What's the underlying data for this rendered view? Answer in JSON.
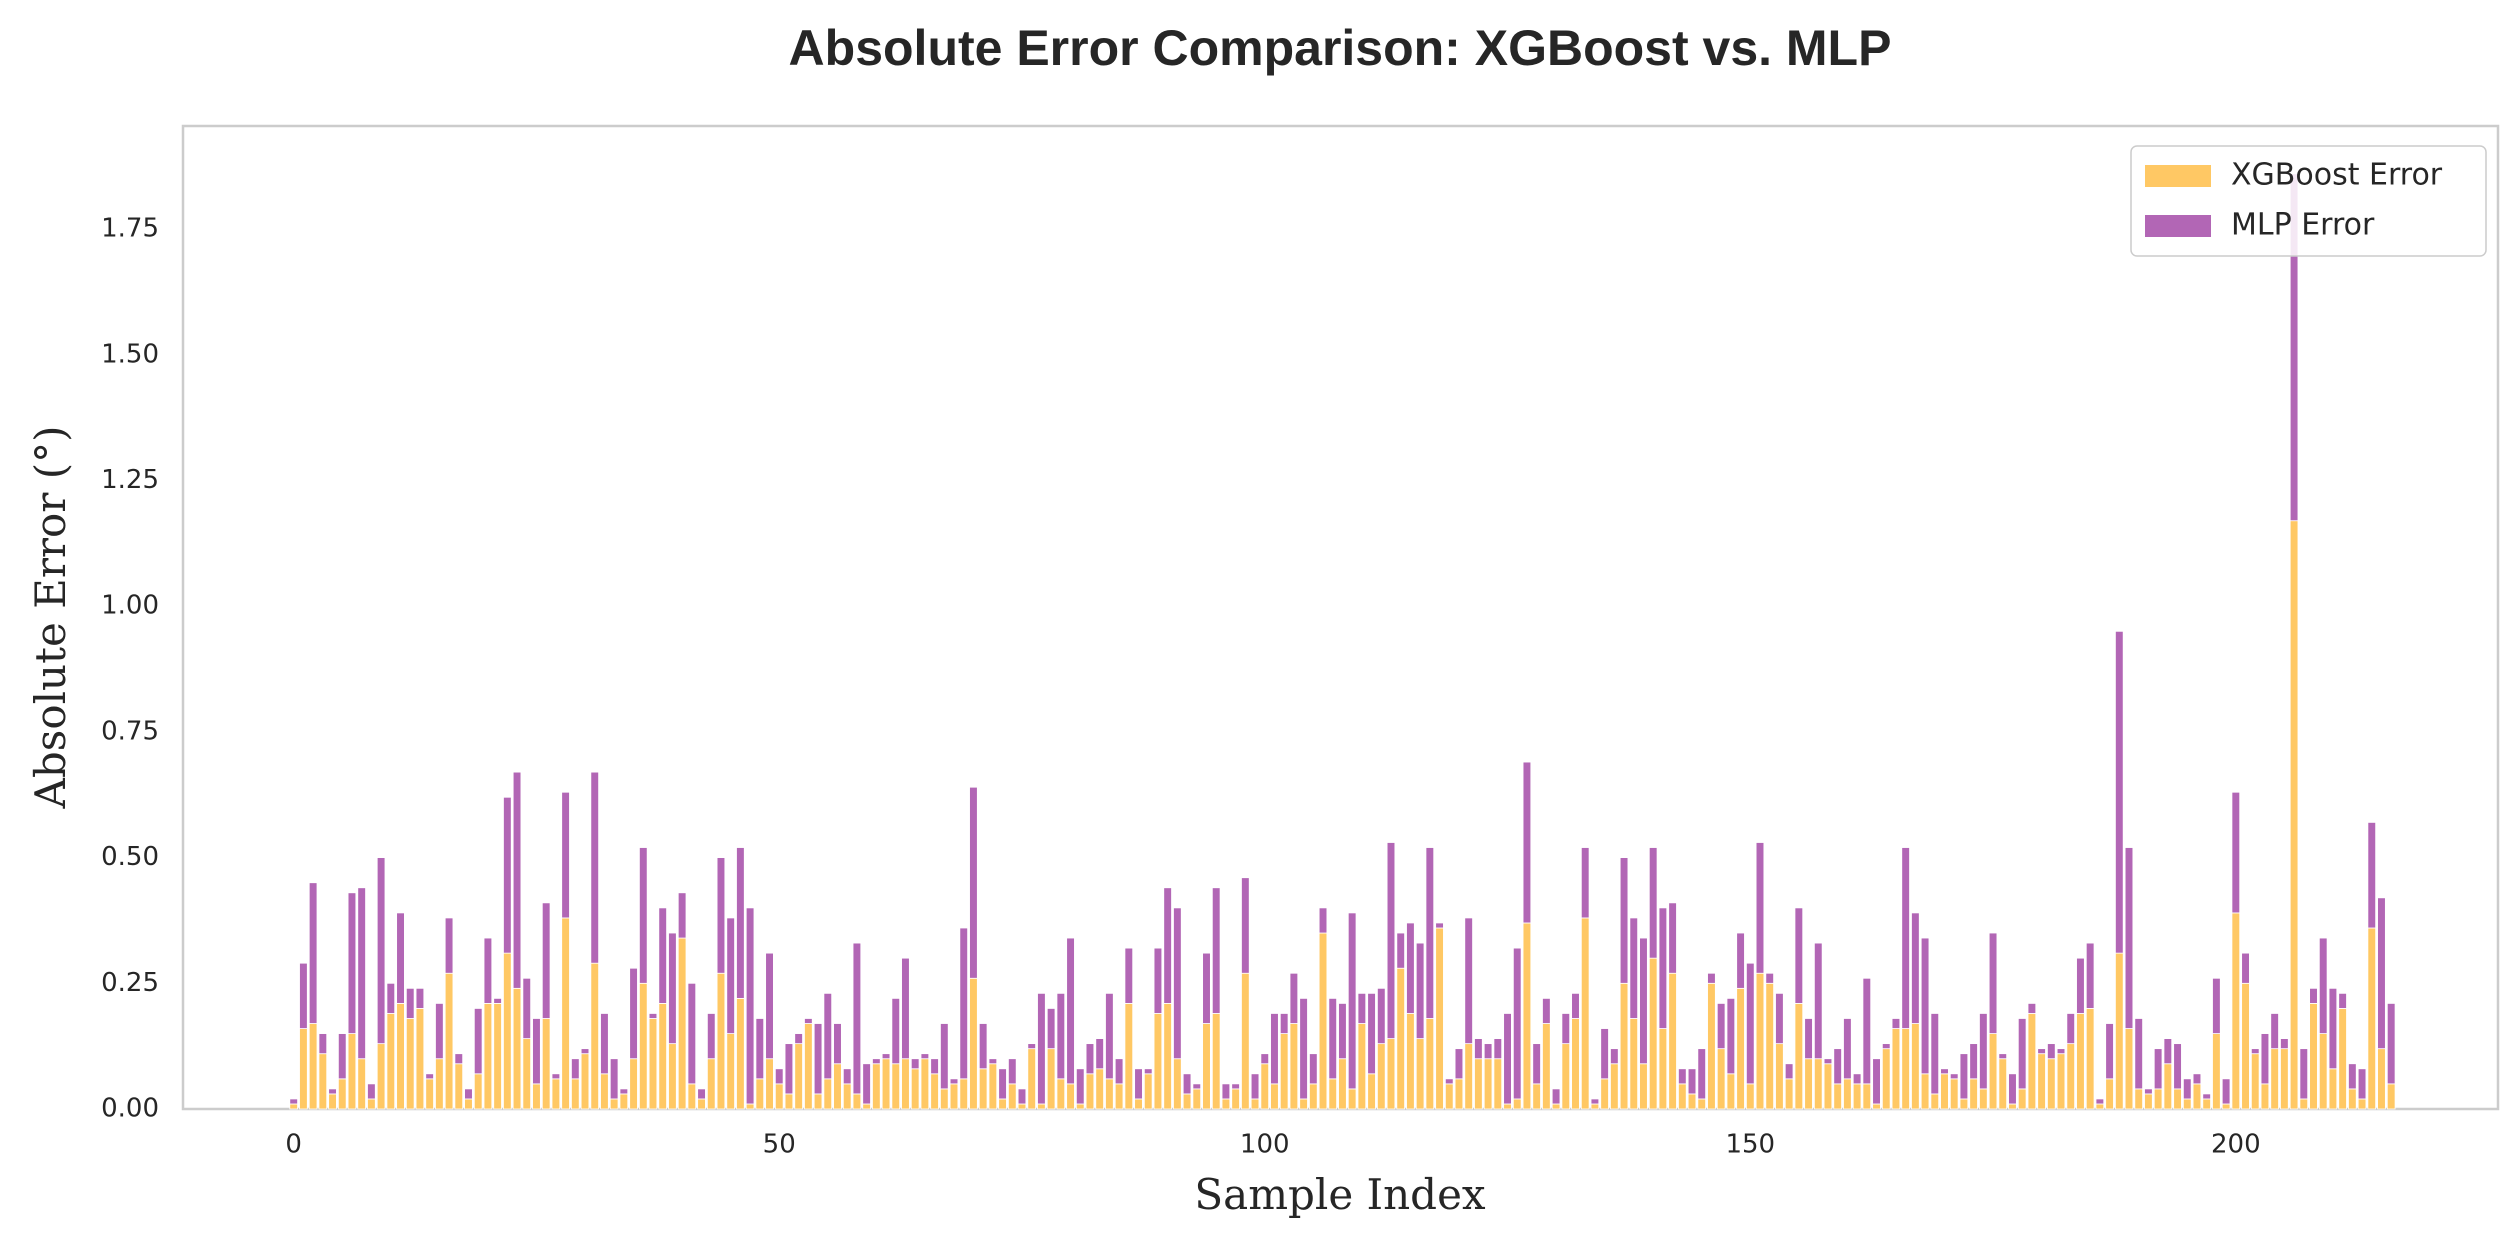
{
  "chart_data": {
    "type": "stacked_bar",
    "title": "Absolute Error Comparison: XGBoost vs. MLP",
    "x_label": "Sample Index",
    "y_label": "Absolute Error (°)",
    "x": [
      0,
      1,
      2,
      3,
      4,
      5,
      6,
      7,
      8,
      9,
      10,
      11,
      12,
      13,
      14,
      15,
      16,
      17,
      18,
      19,
      20,
      21,
      22,
      23,
      24,
      25,
      26,
      27,
      28,
      29,
      30,
      31,
      32,
      33,
      34,
      35,
      36,
      37,
      38,
      39,
      40,
      41,
      42,
      43,
      44,
      45,
      46,
      47,
      48,
      49,
      50,
      51,
      52,
      53,
      54,
      55,
      56,
      57,
      58,
      59,
      60,
      61,
      62,
      63,
      64,
      65,
      66,
      67,
      68,
      69,
      70,
      71,
      72,
      73,
      74,
      75,
      76,
      77,
      78,
      79,
      80,
      81,
      82,
      83,
      84,
      85,
      86,
      87,
      88,
      89,
      90,
      91,
      92,
      93,
      94,
      95,
      96,
      97,
      98,
      99,
      100,
      101,
      102,
      103,
      104,
      105,
      106,
      107,
      108,
      109,
      110,
      111,
      112,
      113,
      114,
      115,
      116,
      117,
      118,
      119,
      120,
      121,
      122,
      123,
      124,
      125,
      126,
      127,
      128,
      129,
      130,
      131,
      132,
      133,
      134,
      135,
      136,
      137,
      138,
      139,
      140,
      141,
      142,
      143,
      144,
      145,
      146,
      147,
      148,
      149,
      150,
      151,
      152,
      153,
      154,
      155,
      156,
      157,
      158,
      159,
      160,
      161,
      162,
      163,
      164,
      165,
      166,
      167,
      168,
      169,
      170,
      171,
      172,
      173,
      174,
      175,
      176,
      177,
      178,
      179,
      180,
      181,
      182,
      183,
      184,
      185,
      186,
      187,
      188,
      189,
      190,
      191,
      192,
      193,
      194,
      195,
      196,
      197,
      198,
      199,
      200,
      201,
      202,
      203,
      204,
      205,
      206,
      207,
      208,
      209,
      210,
      211,
      212,
      213,
      214,
      215,
      216
    ],
    "series": [
      {
        "name": "XGBoost Error",
        "color": "#ffc864",
        "values": [
          0.01,
          0.16,
          0.17,
          0.11,
          0.03,
          0.06,
          0.15,
          0.1,
          0.02,
          0.13,
          0.19,
          0.21,
          0.18,
          0.2,
          0.06,
          0.1,
          0.27,
          0.09,
          0.02,
          0.07,
          0.21,
          0.21,
          0.31,
          0.24,
          0.14,
          0.05,
          0.18,
          0.06,
          0.38,
          0.06,
          0.11,
          0.29,
          0.07,
          0.02,
          0.03,
          0.1,
          0.25,
          0.18,
          0.21,
          0.13,
          0.34,
          0.05,
          0.02,
          0.1,
          0.27,
          0.15,
          0.22,
          0.01,
          0.06,
          0.1,
          0.05,
          0.03,
          0.13,
          0.17,
          0.03,
          0.06,
          0.09,
          0.05,
          0.03,
          0.01,
          0.09,
          0.1,
          0.09,
          0.1,
          0.08,
          0.1,
          0.07,
          0.04,
          0.05,
          0.06,
          0.26,
          0.08,
          0.09,
          0.02,
          0.05,
          0.01,
          0.12,
          0.01,
          0.12,
          0.06,
          0.05,
          0.01,
          0.07,
          0.08,
          0.06,
          0.05,
          0.21,
          0.02,
          0.07,
          0.19,
          0.21,
          0.1,
          0.03,
          0.04,
          0.17,
          0.19,
          0.02,
          0.04,
          0.27,
          0.02,
          0.09,
          0.05,
          0.15,
          0.17,
          0.02,
          0.05,
          0.35,
          0.06,
          0.1,
          0.04,
          0.17,
          0.07,
          0.13,
          0.14,
          0.28,
          0.19,
          0.14,
          0.18,
          0.36,
          0.05,
          0.06,
          0.13,
          0.1,
          0.1,
          0.1,
          0.01,
          0.02,
          0.37,
          0.05,
          0.17,
          0.01,
          0.13,
          0.18,
          0.38,
          0.01,
          0.06,
          0.09,
          0.25,
          0.18,
          0.09,
          0.3,
          0.16,
          0.27,
          0.05,
          0.03,
          0.02,
          0.25,
          0.12,
          0.07,
          0.24,
          0.05,
          0.27,
          0.25,
          0.13,
          0.06,
          0.21,
          0.1,
          0.1,
          0.09,
          0.05,
          0.06,
          0.05,
          0.05,
          0.01,
          0.12,
          0.16,
          0.16,
          0.17,
          0.07,
          0.03,
          0.07,
          0.06,
          0.02,
          0.06,
          0.04,
          0.15,
          0.1,
          0.01,
          0.04,
          0.19,
          0.11,
          0.1,
          0.11,
          0.13,
          0.19,
          0.2,
          0.01,
          0.06,
          0.31,
          0.16,
          0.04,
          0.03,
          0.04,
          0.09,
          0.04,
          0.02,
          0.05,
          0.02,
          0.15,
          0.01,
          0.39,
          0.25,
          0.11,
          0.05,
          0.12,
          0.12,
          1.17,
          0.02,
          0.21,
          0.15,
          0.08,
          0.2,
          0.04,
          0.02,
          0.36,
          0.12,
          0.05
        ]
      },
      {
        "name": "MLP Error",
        "color": "#b266b5",
        "values": [
          0.01,
          0.13,
          0.28,
          0.04,
          0.01,
          0.09,
          0.28,
          0.34,
          0.03,
          0.37,
          0.06,
          0.18,
          0.06,
          0.04,
          0.01,
          0.11,
          0.11,
          0.02,
          0.02,
          0.13,
          0.13,
          0.01,
          0.31,
          0.43,
          0.12,
          0.13,
          0.23,
          0.01,
          0.25,
          0.04,
          0.01,
          0.38,
          0.12,
          0.08,
          0.01,
          0.18,
          0.27,
          0.01,
          0.19,
          0.22,
          0.09,
          0.2,
          0.02,
          0.09,
          0.23,
          0.23,
          0.3,
          0.39,
          0.12,
          0.21,
          0.03,
          0.1,
          0.02,
          0.01,
          0.14,
          0.17,
          0.08,
          0.03,
          0.3,
          0.08,
          0.01,
          0.01,
          0.13,
          0.2,
          0.02,
          0.01,
          0.03,
          0.13,
          0.01,
          0.3,
          0.38,
          0.09,
          0.01,
          0.06,
          0.05,
          0.03,
          0.01,
          0.22,
          0.08,
          0.17,
          0.29,
          0.07,
          0.06,
          0.06,
          0.17,
          0.05,
          0.11,
          0.06,
          0.01,
          0.13,
          0.23,
          0.3,
          0.04,
          0.01,
          0.14,
          0.25,
          0.03,
          0.01,
          0.19,
          0.05,
          0.02,
          0.14,
          0.04,
          0.1,
          0.2,
          0.06,
          0.05,
          0.16,
          0.11,
          0.35,
          0.06,
          0.16,
          0.11,
          0.39,
          0.07,
          0.18,
          0.19,
          0.34,
          0.01,
          0.01,
          0.06,
          0.25,
          0.04,
          0.03,
          0.04,
          0.18,
          0.3,
          0.32,
          0.08,
          0.05,
          0.03,
          0.06,
          0.05,
          0.14,
          0.01,
          0.1,
          0.03,
          0.25,
          0.2,
          0.25,
          0.22,
          0.24,
          0.14,
          0.03,
          0.05,
          0.1,
          0.02,
          0.09,
          0.15,
          0.11,
          0.24,
          0.26,
          0.02,
          0.1,
          0.03,
          0.19,
          0.08,
          0.23,
          0.01,
          0.07,
          0.12,
          0.02,
          0.21,
          0.09,
          0.01,
          0.02,
          0.36,
          0.22,
          0.27,
          0.16,
          0.01,
          0.01,
          0.09,
          0.07,
          0.15,
          0.2,
          0.01,
          0.06,
          0.14,
          0.02,
          0.01,
          0.03,
          0.01,
          0.06,
          0.11,
          0.13,
          0.01,
          0.11,
          0.64,
          0.36,
          0.14,
          0.01,
          0.08,
          0.05,
          0.09,
          0.04,
          0.02,
          0.01,
          0.11,
          0.05,
          0.24,
          0.06,
          0.01,
          0.1,
          0.07,
          0.02,
          0.69,
          0.1,
          0.03,
          0.19,
          0.16,
          0.03,
          0.05,
          0.06,
          0.21,
          0.3,
          0.16
        ]
      }
    ],
    "xlim": [
      -11.4,
      227
    ],
    "xticks": [
      0,
      50,
      100,
      150,
      200
    ],
    "ylim": [
      0,
      1.955
    ],
    "yticks": [
      {
        "value": 0,
        "label": "0.00"
      },
      {
        "value": 0.25,
        "label": "0.25"
      },
      {
        "value": 0.5,
        "label": "0.50"
      },
      {
        "value": 0.75,
        "label": "0.75"
      },
      {
        "value": 1,
        "label": "1.00"
      },
      {
        "value": 1.25,
        "label": "1.25"
      },
      {
        "value": 1.5,
        "label": "1.50"
      },
      {
        "value": 1.75,
        "label": "1.75"
      }
    ],
    "grid": false,
    "legend": "upper right"
  }
}
